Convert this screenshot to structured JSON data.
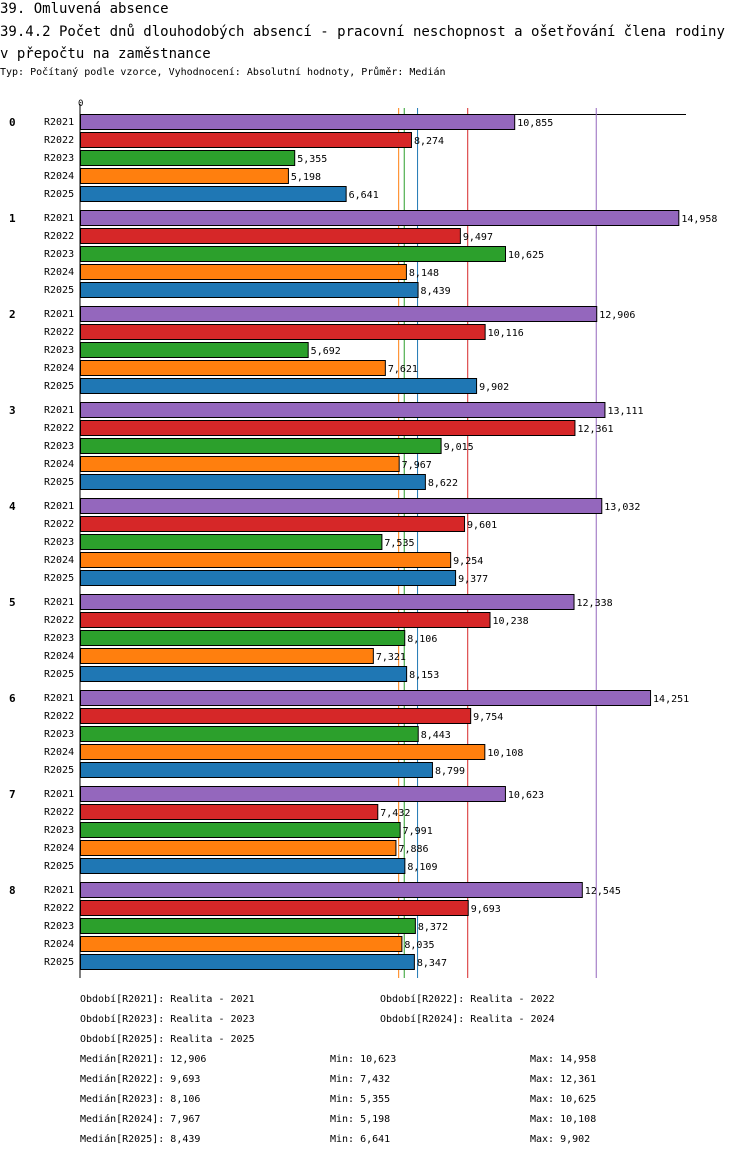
{
  "header": {
    "title": "39. Omluvená absence",
    "subtitle": "39.4.2 Počet dnů dlouhodobých absencí - pracovní neschopnost a ošetřování člena rodiny v přepočtu na zaměstnance",
    "meta": "Typ: Počítaný podle vzorce, Vyhodnocení: Absolutní hodnoty, Průměr: Medián"
  },
  "colors": {
    "R2021": "#9467bd",
    "R2022": "#d62728",
    "R2023": "#2ca02c",
    "R2024": "#ff7f0e",
    "R2025": "#1f77b4"
  },
  "chart_data": {
    "type": "bar",
    "orientation": "horizontal",
    "axis_zero_label": "0",
    "xlim": [
      0,
      15.5
    ],
    "categories": [
      "0",
      "1",
      "2",
      "3",
      "4",
      "5",
      "6",
      "7",
      "8"
    ],
    "series": [
      {
        "name": "R2021",
        "values": [
          10.855,
          14.958,
          12.906,
          13.111,
          13.032,
          12.338,
          14.251,
          10.623,
          12.545
        ],
        "labels": [
          "10,855",
          "14,958",
          "12,906",
          "13,111",
          "13,032",
          "12,338",
          "14,251",
          "10,623",
          "12,545"
        ]
      },
      {
        "name": "R2022",
        "values": [
          8.274,
          9.497,
          10.116,
          12.361,
          9.601,
          10.238,
          9.754,
          7.432,
          9.693
        ],
        "labels": [
          "8,274",
          "9,497",
          "10,116",
          "12,361",
          "9,601",
          "10,238",
          "9,754",
          "7,432",
          "9,693"
        ]
      },
      {
        "name": "R2023",
        "values": [
          5.355,
          10.625,
          5.692,
          9.015,
          7.535,
          8.106,
          8.443,
          7.991,
          8.372
        ],
        "labels": [
          "5,355",
          "10,625",
          "5,692",
          "9,015",
          "7,535",
          "8,106",
          "8,443",
          "7,991",
          "8,372"
        ]
      },
      {
        "name": "R2024",
        "values": [
          5.198,
          8.148,
          7.621,
          7.967,
          9.254,
          7.321,
          10.108,
          7.886,
          8.035
        ],
        "labels": [
          "5,198",
          "8,148",
          "7,621",
          "7,967",
          "9,254",
          "7,321",
          "10,108",
          "7,886",
          "8,035"
        ]
      },
      {
        "name": "R2025",
        "values": [
          6.641,
          8.439,
          9.902,
          8.622,
          9.377,
          8.153,
          8.799,
          8.109,
          8.347
        ],
        "labels": [
          "6,641",
          "8,439",
          "9,902",
          "8,622",
          "9,377",
          "8,153",
          "8,799",
          "8,109",
          "8,347"
        ]
      }
    ],
    "reference_lines": [
      {
        "series": "R2024",
        "value": 7.967
      },
      {
        "series": "R2023",
        "value": 8.106
      },
      {
        "series": "R2025",
        "value": 8.439
      },
      {
        "series": "R2022",
        "value": 9.693
      },
      {
        "series": "R2021",
        "value": 12.906
      }
    ]
  },
  "legend": {
    "periods": [
      "Období[R2021]: Realita - 2021",
      "Období[R2022]: Realita - 2022",
      "Období[R2023]: Realita - 2023",
      "Období[R2024]: Realita - 2024",
      "Období[R2025]: Realita - 2025"
    ],
    "stats": [
      {
        "median": "Medián[R2021]: 12,906",
        "min": "Min: 10,623",
        "max": "Max: 14,958"
      },
      {
        "median": "Medián[R2022]: 9,693",
        "min": "Min: 7,432",
        "max": "Max: 12,361"
      },
      {
        "median": "Medián[R2023]: 8,106",
        "min": "Min: 5,355",
        "max": "Max: 10,625"
      },
      {
        "median": "Medián[R2024]: 7,967",
        "min": "Min: 5,198",
        "max": "Max: 10,108"
      },
      {
        "median": "Medián[R2025]: 8,439",
        "min": "Min: 6,641",
        "max": "Max: 9,902"
      }
    ]
  }
}
